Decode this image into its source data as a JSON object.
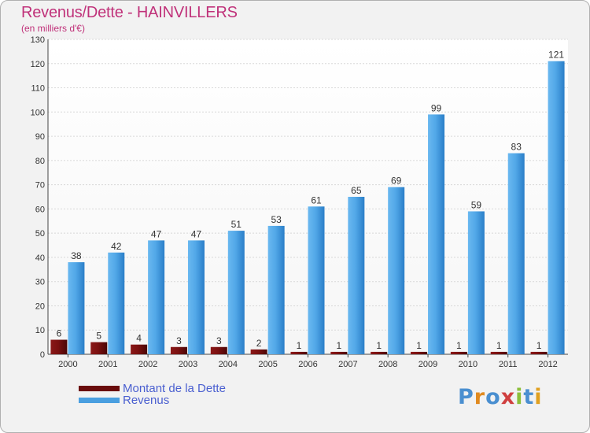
{
  "chart_data": {
    "type": "bar",
    "title": "Revenus/Dette - HAINVILLERS",
    "subtitle": "(en milliers d'€)",
    "categories": [
      "2000",
      "2001",
      "2002",
      "2003",
      "2004",
      "2005",
      "2006",
      "2007",
      "2008",
      "2009",
      "2010",
      "2011",
      "2012"
    ],
    "series": [
      {
        "name": "Montant de la Dette",
        "color": "#7a1010",
        "values": [
          6,
          5,
          4,
          3,
          3,
          2,
          1,
          1,
          1,
          1,
          1,
          1,
          1
        ]
      },
      {
        "name": "Revenus",
        "color": "#4a9fe0",
        "values": [
          38,
          42,
          47,
          47,
          51,
          53,
          61,
          65,
          69,
          99,
          59,
          83,
          121
        ]
      }
    ],
    "ylim": [
      0,
      130
    ],
    "yticks": [
      0,
      10,
      20,
      30,
      40,
      50,
      60,
      70,
      80,
      90,
      100,
      110,
      120,
      130
    ],
    "grid": true,
    "legend_position": "bottom-left"
  },
  "logo": {
    "letters": [
      "P",
      "r",
      "o",
      "x",
      "i",
      "t",
      "i"
    ]
  }
}
